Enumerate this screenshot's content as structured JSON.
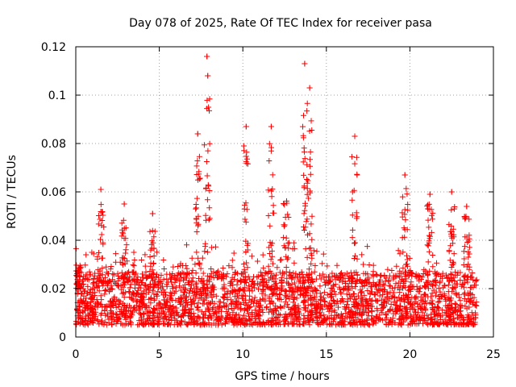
{
  "chart_data": {
    "type": "scatter",
    "title": "Day 078 of 2025, Rate Of TEC Index for receiver pasa",
    "xlabel": "GPS time / hours",
    "ylabel": "ROTI / TECUs",
    "xlim": [
      0,
      25
    ],
    "ylim": [
      0,
      0.12
    ],
    "xticks": [
      0,
      5,
      10,
      15,
      20,
      25
    ],
    "yticks": [
      0,
      0.02,
      0.04,
      0.06,
      0.08,
      0.1,
      0.12
    ],
    "xtick_labels": [
      "0",
      "5",
      "10",
      "15",
      "20",
      "25"
    ],
    "ytick_labels": [
      "0",
      "0.02",
      "0.04",
      "0.06",
      "0.08",
      "0.1",
      "0.12"
    ],
    "grid": true,
    "marker": "+",
    "color": "#ff0000",
    "x_range_of_data": [
      0,
      24
    ],
    "notable_peaks": [
      {
        "x": 7.85,
        "y": 0.116
      },
      {
        "x": 7.9,
        "y": 0.108
      },
      {
        "x": 13.7,
        "y": 0.113
      },
      {
        "x": 14.0,
        "y": 0.103
      },
      {
        "x": 10.2,
        "y": 0.087
      },
      {
        "x": 11.7,
        "y": 0.087
      },
      {
        "x": 16.7,
        "y": 0.083
      },
      {
        "x": 7.3,
        "y": 0.084
      },
      {
        "x": 19.7,
        "y": 0.067
      },
      {
        "x": 1.5,
        "y": 0.061
      },
      {
        "x": 22.5,
        "y": 0.06
      },
      {
        "x": 21.2,
        "y": 0.059
      },
      {
        "x": 2.9,
        "y": 0.055
      },
      {
        "x": 23.4,
        "y": 0.054
      },
      {
        "x": 4.6,
        "y": 0.051
      }
    ]
  }
}
